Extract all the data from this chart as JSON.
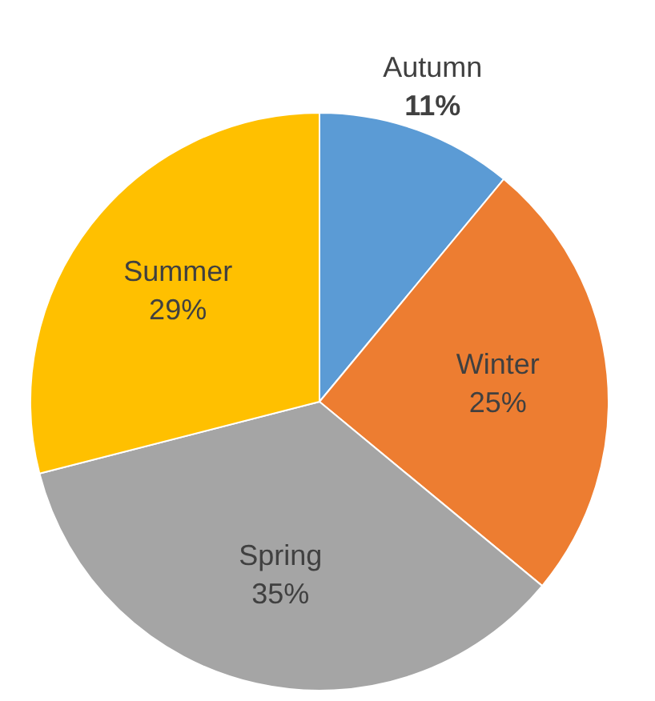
{
  "chart_data": {
    "type": "pie",
    "categories": [
      "Autumn",
      "Winter",
      "Spring",
      "Summer"
    ],
    "values": [
      11,
      25,
      35,
      29
    ],
    "colors": [
      "#5b9bd5",
      "#ed7d31",
      "#a5a5a5",
      "#ffc000"
    ],
    "value_labels": [
      "11%",
      "25%",
      "35%",
      "29%"
    ],
    "legend": false
  }
}
